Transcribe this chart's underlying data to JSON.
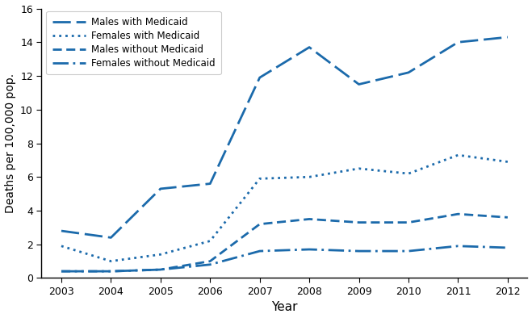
{
  "years": [
    2003,
    2004,
    2005,
    2006,
    2007,
    2008,
    2009,
    2010,
    2011,
    2012
  ],
  "males_with_medicaid": [
    2.8,
    2.4,
    5.3,
    5.6,
    11.9,
    13.7,
    11.5,
    12.2,
    14.0,
    14.3
  ],
  "females_with_medicaid": [
    1.9,
    1.0,
    1.4,
    2.2,
    5.9,
    6.0,
    6.5,
    6.2,
    7.3,
    6.9
  ],
  "males_without_medicaid": [
    0.4,
    0.4,
    0.5,
    1.0,
    3.2,
    3.5,
    3.3,
    3.3,
    3.8,
    3.6
  ],
  "females_without_medicaid": [
    0.4,
    0.4,
    0.5,
    0.8,
    1.6,
    1.7,
    1.6,
    1.6,
    1.9,
    1.8
  ],
  "color": "#1b6aab",
  "ylim": [
    0,
    16
  ],
  "yticks": [
    0,
    2,
    4,
    6,
    8,
    10,
    12,
    14,
    16
  ],
  "xlim": [
    2002.5,
    2012.5
  ],
  "xlabel": "Year",
  "ylabel": "Deaths per 100,000 pop.",
  "legend_labels": [
    "Males with Medicaid",
    "Females with Medicaid",
    "Males without Medicaid",
    "Females without Medicaid"
  ],
  "background_color": "#ffffff",
  "figwidth": 6.59,
  "figheight": 3.94,
  "dpi": 100
}
